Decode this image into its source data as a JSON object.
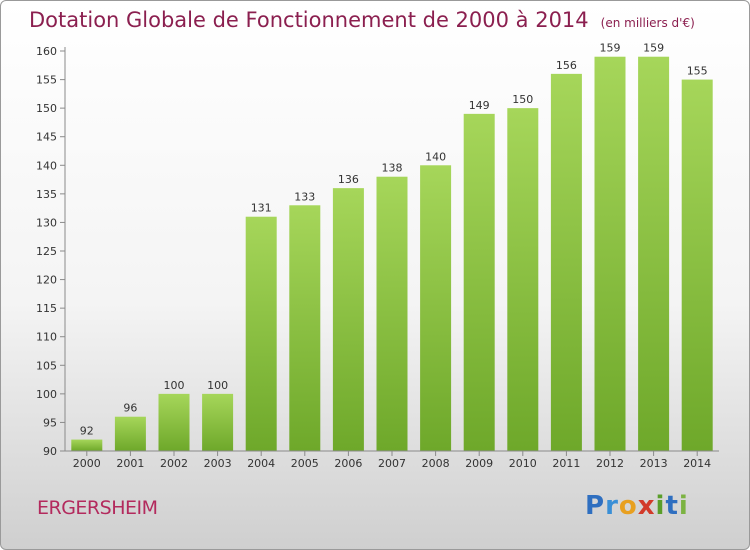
{
  "header": {
    "title": "Dotation Globale de Fonctionnement de 2000 à 2014",
    "unit": "(en milliers d'€)"
  },
  "footer": {
    "commune": "ERGERSHEIM",
    "logo_letters": [
      "P",
      "r",
      "o",
      "x",
      "i",
      "t",
      "i"
    ],
    "logo_colors": [
      "#2f6fc0",
      "#3a8fd6",
      "#e8a020",
      "#d23a2a",
      "#5a9e2a",
      "#2f6fc0",
      "#7cb342"
    ]
  },
  "chart_data": {
    "type": "bar",
    "title": "Dotation Globale de Fonctionnement de 2000 à 2014",
    "subtitle": "(en milliers d'€)",
    "xlabel": "",
    "ylabel": "",
    "categories": [
      "2000",
      "2001",
      "2002",
      "2003",
      "2004",
      "2005",
      "2006",
      "2007",
      "2008",
      "2009",
      "2010",
      "2011",
      "2012",
      "2013",
      "2014"
    ],
    "values": [
      92,
      96,
      100,
      100,
      131,
      133,
      136,
      138,
      140,
      149,
      150,
      156,
      159,
      159,
      155
    ],
    "ylim": [
      90,
      160
    ],
    "yticks": [
      90,
      95,
      100,
      105,
      110,
      115,
      120,
      125,
      130,
      135,
      140,
      145,
      150,
      155,
      160
    ],
    "grid": false,
    "bar_color_light": "#a6d65a",
    "bar_color_dark": "#6ea82a",
    "axis_color": "#8a8a8a"
  }
}
